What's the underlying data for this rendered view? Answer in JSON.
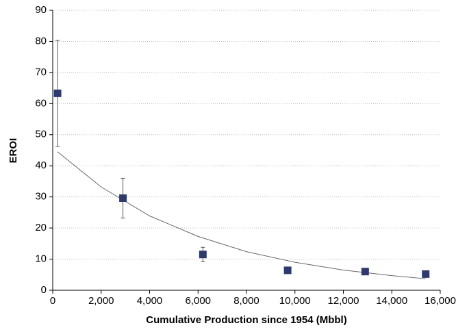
{
  "chart_data": {
    "type": "scatter",
    "xlabel": "Cumulative Production since 1954 (Mbbl)",
    "ylabel": "EROI",
    "x": [
      200,
      2900,
      6200,
      9700,
      12900,
      15400
    ],
    "values": [
      63.3,
      29.6,
      11.5,
      6.4,
      6.0,
      5.2
    ],
    "errors": [
      17,
      6.4,
      2.3,
      0.3,
      0.3,
      0.3
    ],
    "color": "#2e3a6e",
    "trendline": {
      "x": [
        200,
        2000,
        4000,
        6000,
        8000,
        10000,
        12000,
        14000,
        15400
      ],
      "values": [
        44.5,
        33.2,
        23.9,
        17.3,
        12.4,
        9.0,
        6.5,
        4.7,
        3.7
      ],
      "color": "#666666"
    },
    "xlim": [
      0,
      16000
    ],
    "xticks": [
      0,
      {
        "value": 2000,
        "label": "2,000"
      },
      {
        "value": 4000,
        "label": "4,000"
      },
      {
        "value": 6000,
        "label": "6,000"
      },
      {
        "value": 8000,
        "label": "8,000"
      },
      {
        "value": 10000,
        "label": "10,000"
      },
      {
        "value": 12000,
        "label": "12,000"
      },
      {
        "value": 14000,
        "label": "14,000"
      },
      {
        "value": 16000,
        "label": "16,000"
      }
    ],
    "ylim": [
      0,
      90
    ],
    "yticks": [
      0,
      10,
      20,
      30,
      40,
      50,
      60,
      70,
      80,
      90
    ],
    "grid": true
  }
}
